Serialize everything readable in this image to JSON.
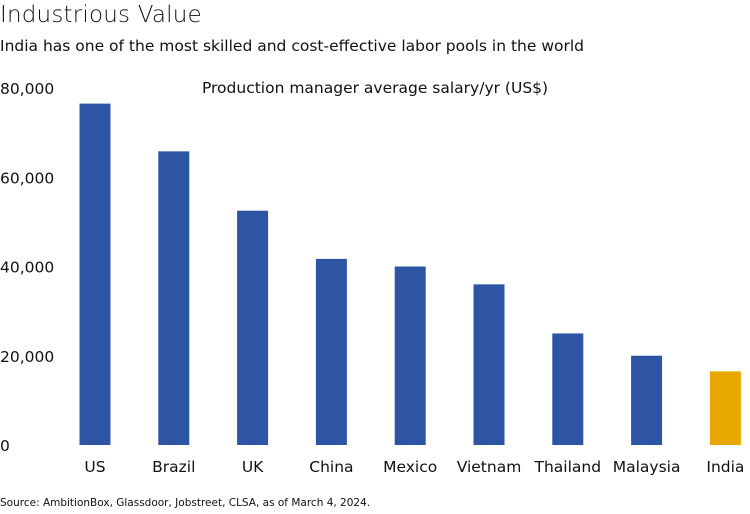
{
  "header": {
    "title": "Industrious Value",
    "subtitle": "India has one of the most skilled and cost-effective labor pools in the world"
  },
  "footer": {
    "source": "Source: AmbitionBox, Glassdoor, Jobstreet, CLSA, as of March 4, 2024."
  },
  "chart_data": {
    "type": "bar",
    "ylabel": "Production manager average salary/yr (US$)",
    "categories": [
      "US",
      "Brazil",
      "UK",
      "China",
      "Mexico",
      "Vietnam",
      "Thailand",
      "Malaysia",
      "India"
    ],
    "values": [
      76500,
      65800,
      52500,
      41700,
      40000,
      36000,
      25000,
      20000,
      16500
    ],
    "ylim": [
      0,
      80000
    ],
    "yticks": [
      0,
      20000,
      40000,
      60000,
      80000
    ],
    "ytick_labels": [
      "0",
      "20,000",
      "40,000",
      "60,000",
      "80,000"
    ],
    "grid": false,
    "colors": {
      "default": "#2e55a3",
      "highlight": "#e8a800"
    },
    "highlight_category": "India"
  }
}
